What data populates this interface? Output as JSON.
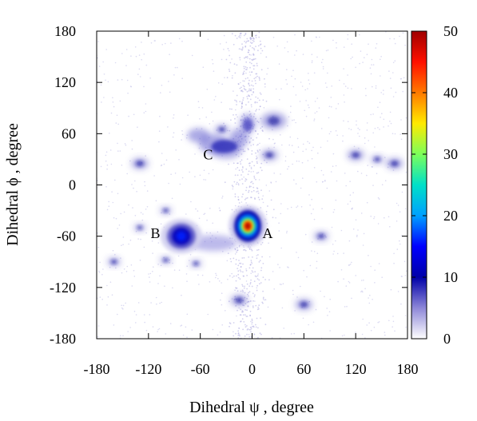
{
  "chart_data": {
    "type": "heatmap",
    "title": "",
    "xlabel": "Dihedral ψ , degree",
    "ylabel": "Dihedral ϕ , degree",
    "xlim": [
      -180,
      180
    ],
    "ylim": [
      -180,
      180
    ],
    "x_ticks": [
      -180,
      -120,
      -60,
      0,
      60,
      120,
      180
    ],
    "y_ticks": [
      -180,
      -120,
      -60,
      0,
      60,
      120,
      180
    ],
    "colorbar": {
      "range": [
        0,
        50
      ],
      "ticks": [
        0,
        10,
        20,
        30,
        40,
        50
      ],
      "colors": [
        "#ffffff",
        "#8d87d8",
        "#0000a8",
        "#0000ff",
        "#00a0ff",
        "#00e0c8",
        "#7cff5a",
        "#ffea00",
        "#ff7a00",
        "#ff1000",
        "#a00000"
      ]
    },
    "clusters": [
      {
        "name": "A",
        "x": -5,
        "y": -48,
        "peak": 50
      },
      {
        "name": "B",
        "x": -82,
        "y": -60,
        "peak": 16
      },
      {
        "name": "C",
        "x": -30,
        "y": 45,
        "peak": 10
      }
    ],
    "annotations": [
      {
        "text": "A",
        "x": 18,
        "y": -62
      },
      {
        "text": "B",
        "x": -112,
        "y": -62
      },
      {
        "text": "C",
        "x": -51,
        "y": 30
      }
    ]
  }
}
